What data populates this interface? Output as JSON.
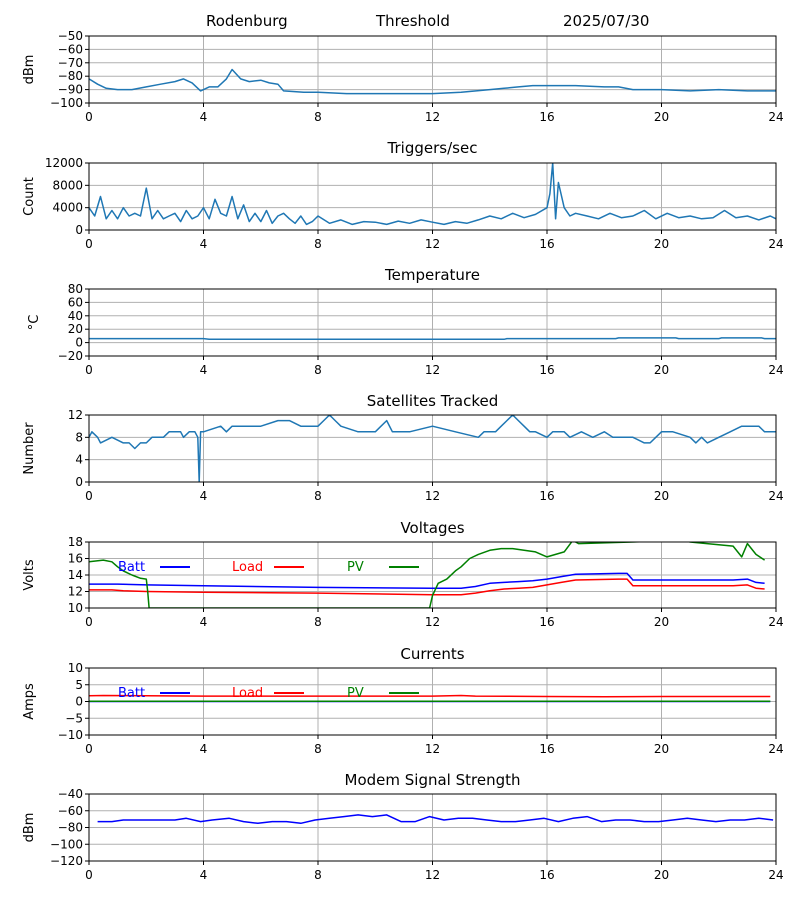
{
  "header": {
    "site": "Rodenburg",
    "mode": "Threshold",
    "date": "2025/07/30"
  },
  "chart_data": [
    {
      "type": "line",
      "title": "",
      "ylabel": "dBm",
      "xlim": [
        0,
        24
      ],
      "ylim": [
        -100,
        -50
      ],
      "xticks": [
        0,
        4,
        8,
        12,
        16,
        20,
        24
      ],
      "yticks": [
        -100,
        -90,
        -80,
        -70,
        -60,
        -50
      ],
      "ytick_labels": [
        "−100",
        "−90",
        "−80",
        "−70",
        "−60",
        "−50"
      ],
      "grid": true,
      "series": [
        {
          "name": "",
          "color": "#1f77b4",
          "x": [
            0,
            0.3,
            0.6,
            1,
            1.5,
            2,
            2.5,
            3,
            3.3,
            3.6,
            3.9,
            4.2,
            4.5,
            4.8,
            5,
            5.3,
            5.6,
            6,
            6.3,
            6.6,
            6.8,
            7.5,
            8,
            9,
            10,
            11,
            12,
            13,
            14,
            14.5,
            15,
            15.5,
            16,
            17,
            18,
            18.5,
            19,
            20,
            21,
            22,
            23,
            24
          ],
          "y": [
            -82,
            -86,
            -89,
            -90,
            -90,
            -88,
            -86,
            -84,
            -82,
            -85,
            -91,
            -88,
            -88,
            -82,
            -75,
            -82,
            -84,
            -83,
            -85,
            -86,
            -91,
            -92,
            -92,
            -93,
            -93,
            -93,
            -93,
            -92,
            -90,
            -89,
            -88,
            -87,
            -87,
            -87,
            -88,
            -88,
            -90,
            -90,
            -91,
            -90,
            -91,
            -91
          ]
        }
      ]
    },
    {
      "type": "line",
      "title": "Triggers/sec",
      "ylabel": "Count",
      "xlim": [
        0,
        24
      ],
      "ylim": [
        0,
        12000
      ],
      "xticks": [
        0,
        4,
        8,
        12,
        16,
        20,
        24
      ],
      "yticks": [
        0,
        4000,
        8000,
        12000
      ],
      "grid": true,
      "series": [
        {
          "name": "",
          "color": "#1f77b4",
          "x": [
            0,
            0.2,
            0.4,
            0.6,
            0.8,
            1,
            1.2,
            1.4,
            1.6,
            1.8,
            2,
            2.2,
            2.4,
            2.6,
            2.8,
            3,
            3.2,
            3.4,
            3.6,
            3.8,
            4,
            4.2,
            4.4,
            4.6,
            4.8,
            5,
            5.2,
            5.4,
            5.6,
            5.8,
            6,
            6.2,
            6.4,
            6.6,
            6.8,
            7,
            7.2,
            7.4,
            7.6,
            7.8,
            8,
            8.4,
            8.8,
            9.2,
            9.6,
            10,
            10.4,
            10.8,
            11.2,
            11.6,
            12,
            12.4,
            12.8,
            13.2,
            13.6,
            14,
            14.4,
            14.8,
            15.2,
            15.6,
            16,
            16.1,
            16.2,
            16.3,
            16.4,
            16.6,
            16.8,
            17,
            17.4,
            17.8,
            18.2,
            18.6,
            19,
            19.4,
            19.8,
            20.2,
            20.6,
            21,
            21.4,
            21.8,
            22.2,
            22.6,
            23,
            23.4,
            23.8,
            24
          ],
          "y": [
            4000,
            2500,
            6000,
            2000,
            3500,
            2000,
            4000,
            2500,
            3000,
            2500,
            7500,
            2000,
            3500,
            2000,
            2500,
            3000,
            1500,
            3500,
            2000,
            2500,
            4000,
            2000,
            5500,
            3000,
            2500,
            6000,
            2000,
            4500,
            1500,
            3000,
            1500,
            3500,
            1200,
            2500,
            3000,
            2000,
            1200,
            2500,
            1000,
            1500,
            2500,
            1200,
            1800,
            1000,
            1500,
            1400,
            1000,
            1600,
            1200,
            1800,
            1400,
            1000,
            1500,
            1200,
            1800,
            2500,
            2000,
            3000,
            2200,
            2800,
            4000,
            6500,
            12000,
            2000,
            8500,
            4000,
            2500,
            3000,
            2500,
            2000,
            3000,
            2200,
            2500,
            3500,
            2000,
            3000,
            2200,
            2500,
            2000,
            2200,
            3500,
            2200,
            2500,
            1800,
            2500,
            2000
          ]
        }
      ]
    },
    {
      "type": "line",
      "title": "Temperature",
      "ylabel": "°C",
      "xlim": [
        0,
        24
      ],
      "ylim": [
        -20,
        80
      ],
      "xticks": [
        0,
        4,
        8,
        12,
        16,
        20,
        24
      ],
      "yticks": [
        -20,
        0,
        20,
        40,
        60,
        80
      ],
      "ytick_labels": [
        "−20",
        "0",
        "20",
        "40",
        "60",
        "80"
      ],
      "grid": true,
      "series": [
        {
          "name": "",
          "color": "#1f77b4",
          "x": [
            0,
            4,
            4.2,
            8,
            12,
            14.5,
            14.6,
            18.4,
            18.5,
            20.5,
            20.6,
            22,
            22.1,
            23.5,
            23.6,
            24
          ],
          "y": [
            6,
            6,
            5,
            5,
            5,
            5,
            6,
            6,
            7,
            7,
            6,
            6,
            7,
            7,
            6,
            6
          ]
        }
      ]
    },
    {
      "type": "line",
      "title": "Satellites Tracked",
      "ylabel": "Number",
      "xlim": [
        0,
        24
      ],
      "ylim": [
        0,
        12
      ],
      "xticks": [
        0,
        4,
        8,
        12,
        16,
        20,
        24
      ],
      "yticks": [
        0,
        4,
        8,
        12
      ],
      "grid": true,
      "series": [
        {
          "name": "",
          "color": "#1f77b4",
          "x": [
            0,
            0.1,
            0.3,
            0.4,
            0.8,
            1.2,
            1.4,
            1.6,
            1.8,
            2,
            2.2,
            2.6,
            2.8,
            3.2,
            3.3,
            3.5,
            3.7,
            3.8,
            3.85,
            3.9,
            4,
            4.6,
            4.8,
            5,
            5.2,
            5.4,
            6,
            6.6,
            7,
            7.4,
            8,
            8.2,
            8.4,
            8.6,
            8.8,
            9.4,
            10,
            10.4,
            10.6,
            11.2,
            12,
            12.8,
            13.6,
            13.8,
            14.2,
            14.4,
            14.6,
            14.8,
            15,
            15.2,
            15.4,
            15.6,
            16,
            16.2,
            16.4,
            16.6,
            16.8,
            17.2,
            17.6,
            18,
            18.3,
            18.6,
            19,
            19.4,
            19.6,
            19.8,
            20,
            20.4,
            21,
            21.2,
            21.4,
            21.6,
            22,
            22.4,
            22.8,
            23.4,
            23.6,
            24
          ],
          "y": [
            8,
            9,
            8,
            7,
            8,
            7,
            7,
            6,
            7,
            7,
            8,
            8,
            9,
            9,
            8,
            9,
            9,
            8,
            0,
            9,
            9,
            10,
            9,
            10,
            10,
            10,
            10,
            11,
            11,
            10,
            10,
            11,
            12,
            11,
            10,
            9,
            9,
            11,
            9,
            9,
            10,
            9,
            8,
            9,
            9,
            10,
            11,
            12,
            11,
            10,
            9,
            9,
            8,
            9,
            9,
            9,
            8,
            9,
            8,
            9,
            8,
            8,
            8,
            7,
            7,
            8,
            9,
            9,
            8,
            7,
            8,
            7,
            8,
            9,
            10,
            10,
            9,
            9
          ]
        }
      ]
    },
    {
      "type": "line",
      "title": "Voltages",
      "ylabel": "Volts",
      "xlim": [
        0,
        24
      ],
      "ylim": [
        10,
        18
      ],
      "xticks": [
        0,
        4,
        8,
        12,
        16,
        20,
        24
      ],
      "yticks": [
        10,
        12,
        14,
        16,
        18
      ],
      "grid": true,
      "legend": "top-left",
      "series": [
        {
          "name": "Batt",
          "color": "#0000ff",
          "x": [
            0,
            1,
            2,
            4,
            8,
            12,
            13,
            13.5,
            14,
            14.5,
            15,
            15.5,
            16,
            16.5,
            17,
            18.5,
            18.8,
            19,
            20,
            22,
            22.5,
            23,
            23.3,
            23.6
          ],
          "y": [
            12.9,
            12.9,
            12.8,
            12.7,
            12.5,
            12.4,
            12.4,
            12.6,
            13.0,
            13.1,
            13.2,
            13.3,
            13.5,
            13.8,
            14.1,
            14.2,
            14.2,
            13.4,
            13.4,
            13.4,
            13.4,
            13.5,
            13.1,
            13.0
          ]
        },
        {
          "name": "Load",
          "color": "#ff0000",
          "x": [
            0,
            0.8,
            1.2,
            2,
            4,
            8,
            12,
            13,
            13.5,
            14,
            14.5,
            15,
            15.5,
            16,
            16.5,
            17,
            18.5,
            18.8,
            19,
            20,
            22,
            22.5,
            23,
            23.3,
            23.6
          ],
          "y": [
            12.2,
            12.2,
            12.1,
            12.0,
            11.9,
            11.8,
            11.6,
            11.6,
            11.8,
            12.1,
            12.3,
            12.4,
            12.5,
            12.8,
            13.1,
            13.4,
            13.5,
            13.5,
            12.7,
            12.7,
            12.7,
            12.7,
            12.8,
            12.4,
            12.3
          ]
        },
        {
          "name": "PV",
          "color": "#008000",
          "x": [
            0,
            0.5,
            0.8,
            1,
            1.2,
            1.5,
            1.8,
            2,
            2.05,
            2.1,
            11.9,
            12,
            12.2,
            12.5,
            12.8,
            13,
            13.3,
            13.6,
            14,
            14.4,
            14.8,
            15.2,
            15.6,
            16,
            16.3,
            16.6,
            16.9,
            17.1,
            20.8,
            21,
            22.5,
            22.8,
            23,
            23.3,
            23.6
          ],
          "y": [
            15.6,
            15.8,
            15.6,
            15.0,
            14.5,
            14.0,
            13.6,
            13.5,
            12.0,
            10.0,
            10.0,
            11.5,
            13.0,
            13.5,
            14.5,
            15.0,
            16.0,
            16.5,
            17.0,
            17.2,
            17.2,
            17.0,
            16.8,
            16.2,
            16.5,
            16.8,
            18.2,
            17.8,
            18.2,
            18.0,
            17.5,
            16.2,
            17.8,
            16.5,
            15.8
          ]
        }
      ]
    },
    {
      "type": "line",
      "title": "Currents",
      "ylabel": "Amps",
      "xlim": [
        0,
        24
      ],
      "ylim": [
        -10,
        10
      ],
      "xticks": [
        0,
        4,
        8,
        12,
        16,
        20,
        24
      ],
      "yticks": [
        -10,
        -5,
        0,
        5,
        10
      ],
      "ytick_labels": [
        "−10",
        "−5",
        "0",
        "5",
        "10"
      ],
      "grid": true,
      "legend": "top-left",
      "series": [
        {
          "name": "Batt",
          "color": "#0000ff",
          "x": [
            0,
            23.8
          ],
          "y": [
            0,
            0
          ]
        },
        {
          "name": "Load",
          "color": "#ff0000",
          "x": [
            0,
            0.5,
            2,
            4,
            8,
            12,
            13,
            13.5,
            16,
            18,
            20,
            23.8
          ],
          "y": [
            1.7,
            1.8,
            1.7,
            1.6,
            1.6,
            1.6,
            1.8,
            1.6,
            1.5,
            1.4,
            1.5,
            1.5
          ]
        },
        {
          "name": "PV",
          "color": "#008000",
          "x": [
            0,
            23.8
          ],
          "y": [
            0.1,
            0.1
          ]
        }
      ]
    },
    {
      "type": "line",
      "title": "Modem Signal Strength",
      "ylabel": "dBm",
      "xlim": [
        0,
        24
      ],
      "ylim": [
        -120,
        -40
      ],
      "xticks": [
        0,
        4,
        8,
        12,
        16,
        20,
        24
      ],
      "yticks": [
        -120,
        -100,
        -80,
        -60,
        -40
      ],
      "ytick_labels": [
        "−120",
        "−100",
        "−80",
        "−60",
        "−40"
      ],
      "grid": true,
      "series": [
        {
          "name": "",
          "color": "#0000ff",
          "x": [
            0.3,
            0.8,
            1.2,
            1.8,
            2.4,
            3,
            3.4,
            3.9,
            4.3,
            4.9,
            5.4,
            5.9,
            6.4,
            6.9,
            7.4,
            7.9,
            8.4,
            8.9,
            9.4,
            9.9,
            10.4,
            10.9,
            11.4,
            11.9,
            12.4,
            12.9,
            13.4,
            13.9,
            14.4,
            14.9,
            15.4,
            15.9,
            16.4,
            16.9,
            17.4,
            17.9,
            18.4,
            18.9,
            19.4,
            19.9,
            20.4,
            20.9,
            21.4,
            21.9,
            22.4,
            22.9,
            23.4,
            23.9
          ],
          "y": [
            -73,
            -73,
            -71,
            -71,
            -71,
            -71,
            -69,
            -73,
            -71,
            -69,
            -73,
            -75,
            -73,
            -73,
            -75,
            -71,
            -69,
            -67,
            -65,
            -67,
            -65,
            -73,
            -73,
            -67,
            -71,
            -69,
            -69,
            -71,
            -73,
            -73,
            -71,
            -69,
            -73,
            -69,
            -67,
            -73,
            -71,
            -71,
            -73,
            -73,
            -71,
            -69,
            -71,
            -73,
            -71,
            -71,
            -69,
            -71
          ]
        }
      ]
    }
  ]
}
